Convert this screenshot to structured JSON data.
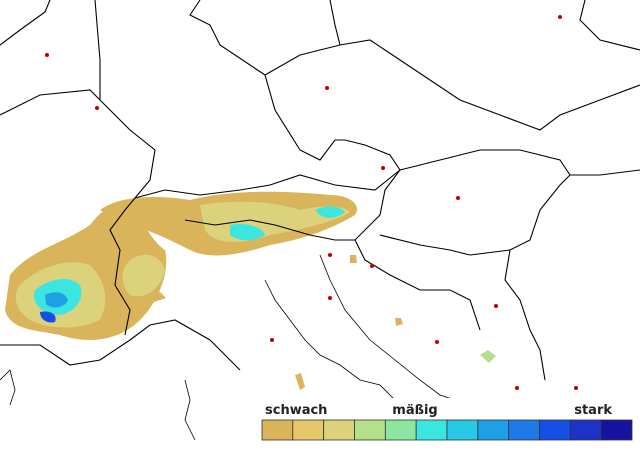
{
  "legend": {
    "labels": {
      "low": "schwach",
      "mid": "mäßig",
      "high": "stark"
    },
    "colors": [
      "#d9b45a",
      "#e6c86a",
      "#dcd27c",
      "#b4e08c",
      "#8ce6a0",
      "#3ce6e0",
      "#28c8e6",
      "#1ea0e6",
      "#1e7ae6",
      "#1450e6",
      "#1e32c8",
      "#1414a0"
    ]
  }
}
